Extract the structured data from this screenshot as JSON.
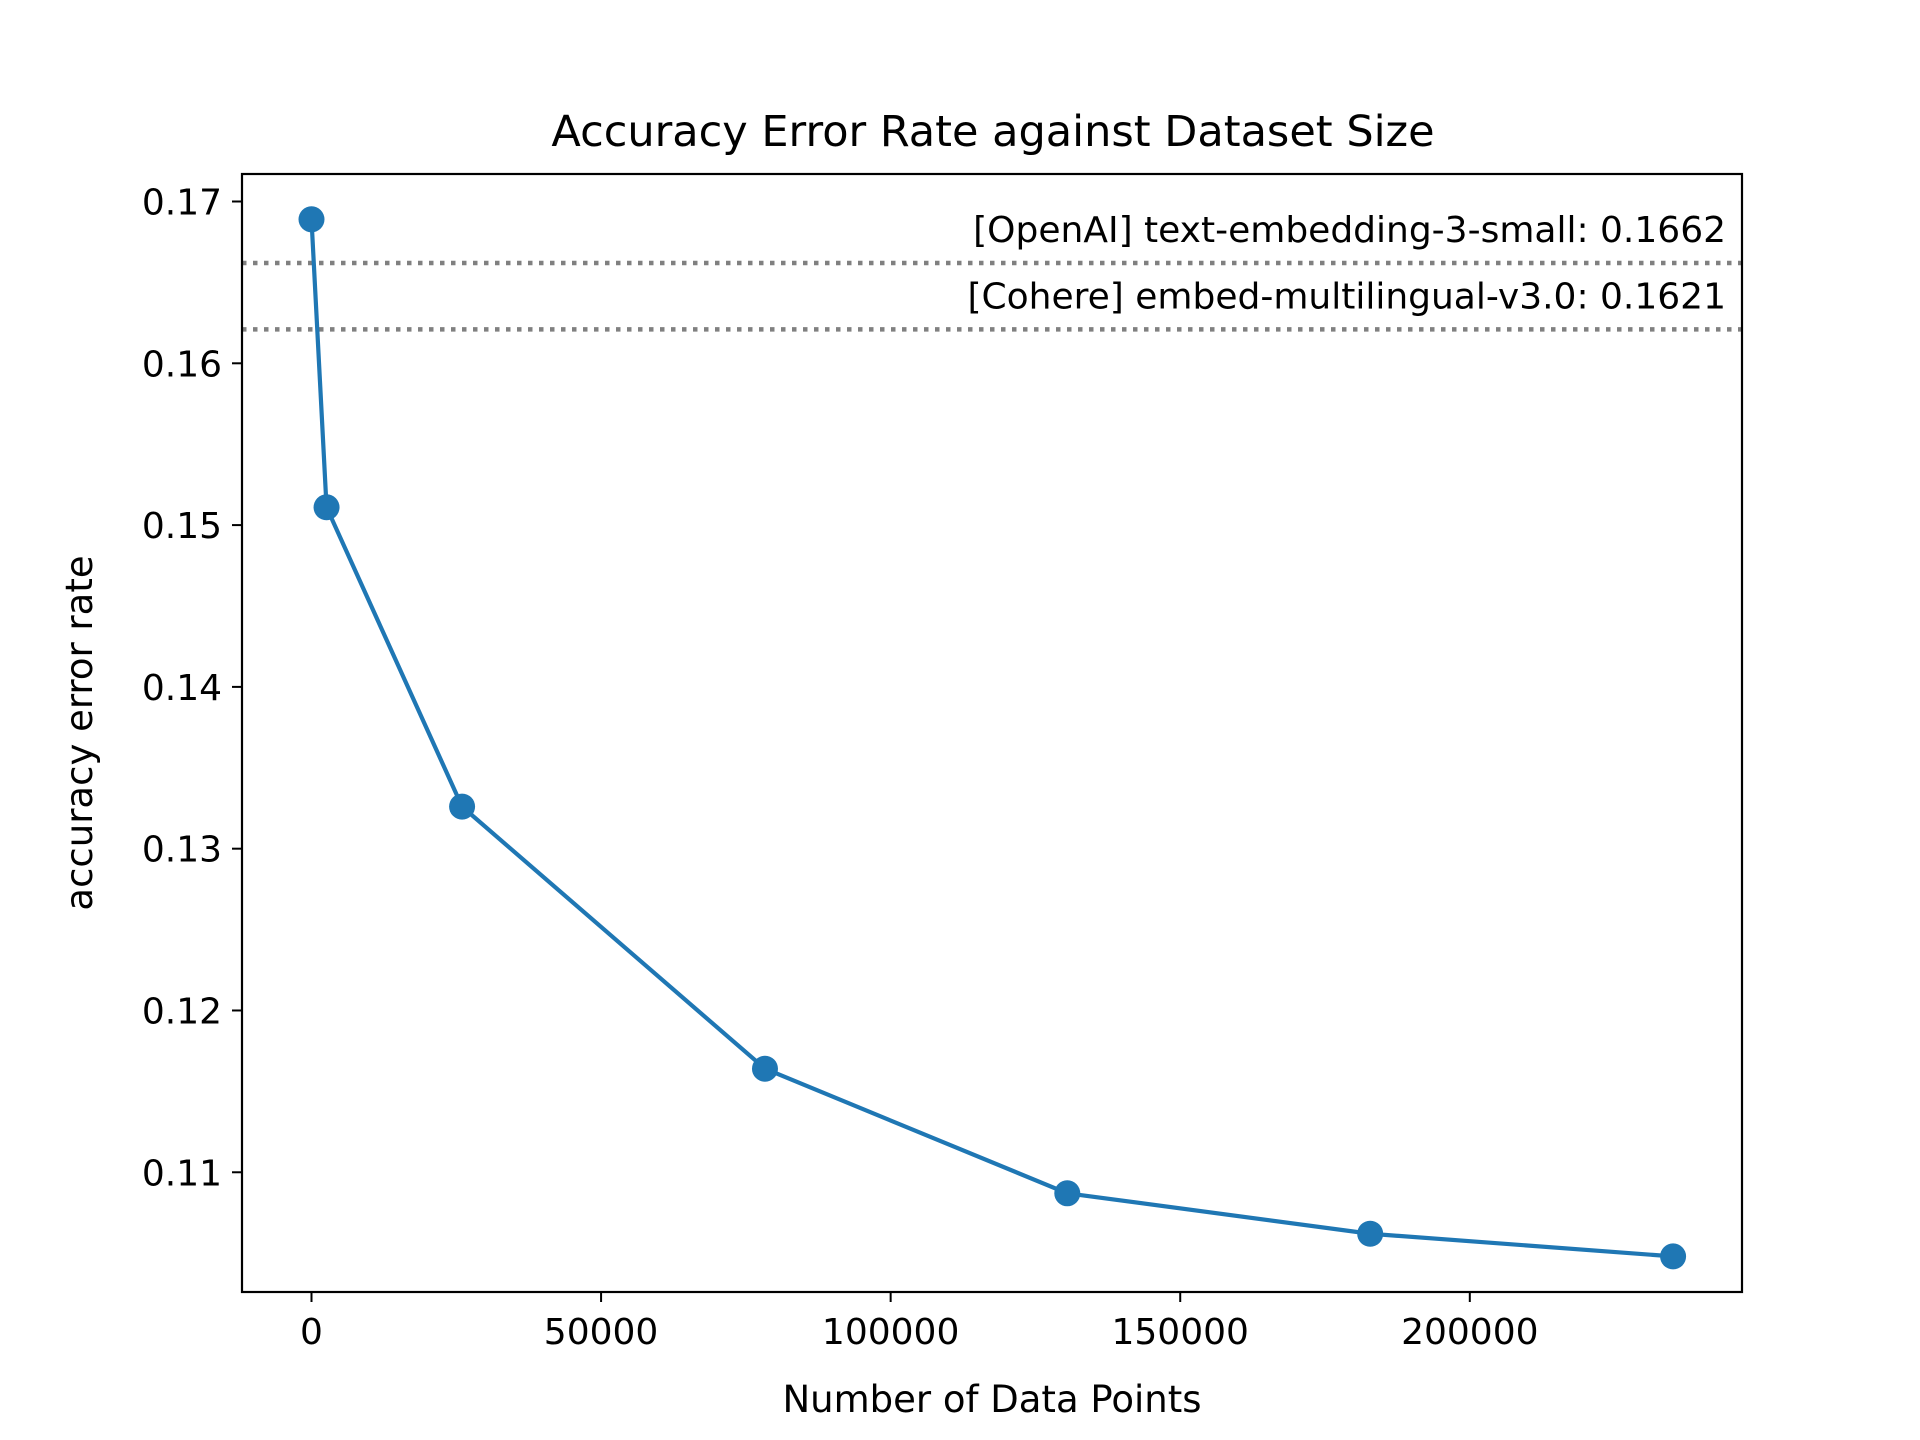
{
  "chart_data": {
    "type": "line",
    "title": "Accuracy Error Rate against Dataset Size",
    "xlabel": "Number of Data Points",
    "ylabel": "accuracy error rate",
    "xlim": [
      -12000,
      247000
    ],
    "ylim": [
      0.1026,
      0.1717
    ],
    "x_ticks": [
      0,
      50000,
      100000,
      150000,
      200000
    ],
    "x_tick_labels": [
      "0",
      "50000",
      "100000",
      "150000",
      "200000"
    ],
    "y_ticks": [
      0.11,
      0.12,
      0.13,
      0.14,
      0.15,
      0.16,
      0.17
    ],
    "y_tick_labels": [
      "0.11",
      "0.12",
      "0.13",
      "0.14",
      "0.15",
      "0.16",
      "0.17"
    ],
    "grid": false,
    "series": [
      {
        "color": "#1f77b4",
        "x": [
          0,
          2600,
          26000,
          78300,
          130500,
          182800,
          235100
        ],
        "y": [
          0.1689,
          0.1511,
          0.1326,
          0.1164,
          0.1087,
          0.1062,
          0.1048
        ]
      }
    ],
    "reference_lines": [
      {
        "label": "[OpenAI] text-embedding-3-small: 0.1662",
        "y": 0.1662,
        "color": "#808080"
      },
      {
        "label": "[Cohere] embed-multilingual-v3.0: 0.1621",
        "y": 0.1621,
        "color": "#808080"
      }
    ]
  }
}
